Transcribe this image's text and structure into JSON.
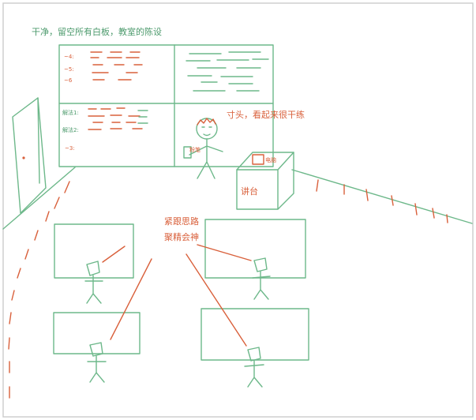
{
  "annotations": {
    "top_note": "干净，留空所有白板，教室的陈设",
    "teacher_note": "寸头，看起来很干练",
    "student_note_line1": "紧跟思路",
    "student_note_line2": "聚精会神"
  },
  "board": {
    "q1": "~4:",
    "q2": "~5:",
    "q3": "~6",
    "a1": "解法1:",
    "a2": "解法2:",
    "a3": "~3:"
  },
  "objects": {
    "podium_label": "讲台",
    "podium_box_label": "电脑",
    "teacher_item": "粉笔"
  },
  "colors": {
    "ink_green": "#6db88a",
    "ink_red": "#d9603b",
    "frame": "#cfcfcf"
  }
}
